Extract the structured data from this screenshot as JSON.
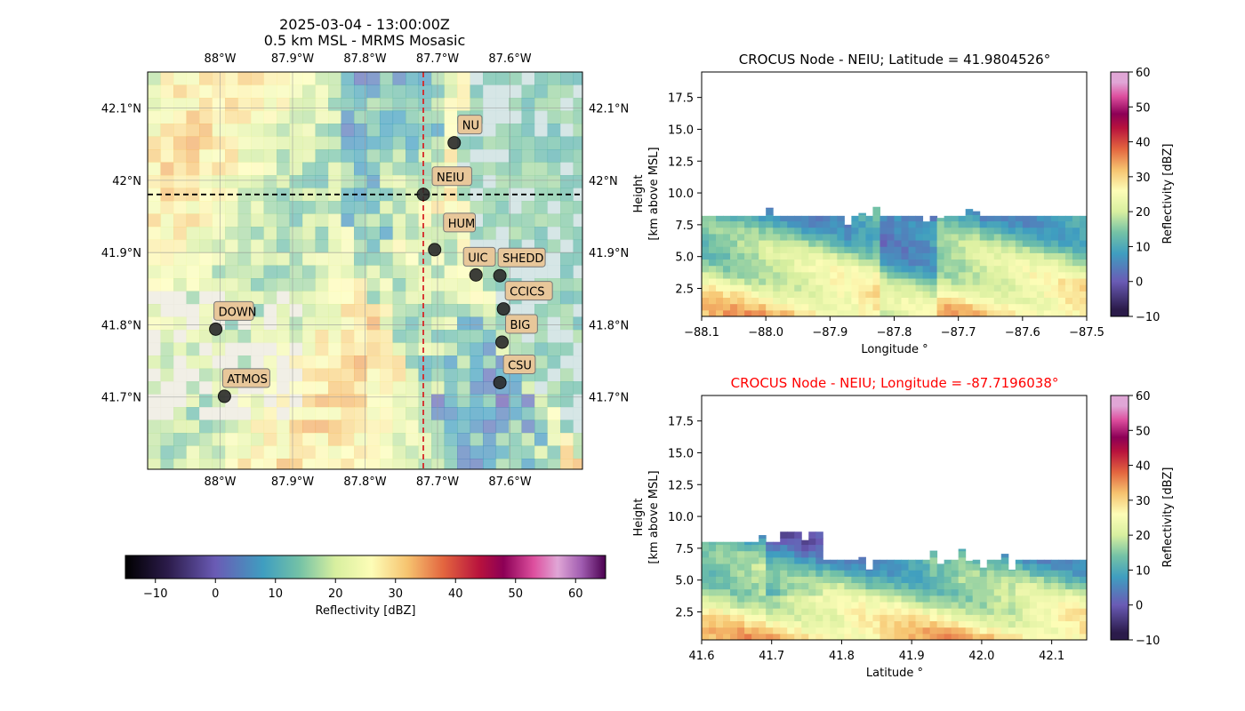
{
  "colors": {
    "neiu_line": "#d62728",
    "lat_line": "#000000",
    "station_fill": "#2b2b2b",
    "station_label_bg": "#e8c79a",
    "map_land": "#ece9dc",
    "map_water": "#c8dede",
    "title_red": "#ff0000"
  },
  "colorscale": {
    "name": "reflectivity",
    "stops": [
      {
        "v": -15,
        "c": "#000000"
      },
      {
        "v": -8,
        "c": "#2b1b4a"
      },
      {
        "v": 0,
        "c": "#6a5bb5"
      },
      {
        "v": 8,
        "c": "#3f9ec0"
      },
      {
        "v": 14,
        "c": "#74c2a6"
      },
      {
        "v": 20,
        "c": "#d8ef9f"
      },
      {
        "v": 26,
        "c": "#fdfdb7"
      },
      {
        "v": 32,
        "c": "#f6c36f"
      },
      {
        "v": 38,
        "c": "#e3653f"
      },
      {
        "v": 44,
        "c": "#b8123d"
      },
      {
        "v": 48,
        "c": "#8c0056"
      },
      {
        "v": 53,
        "c": "#dd4f9e"
      },
      {
        "v": 57,
        "c": "#e0a6d6"
      },
      {
        "v": 61,
        "c": "#a05cb0"
      },
      {
        "v": 65,
        "c": "#4b0050"
      }
    ]
  },
  "chart_data": [
    {
      "type": "heatmap",
      "id": "map",
      "title": "2025-03-04 - 13:00:00Z",
      "subtitle": "0.5 km MSL - MRMS Mosasic",
      "xlim": [
        -88.1,
        -87.5
      ],
      "ylim": [
        41.6,
        42.15
      ],
      "x_ticks": [
        -88.0,
        -87.9,
        -87.8,
        -87.7,
        -87.6
      ],
      "x_tick_labels": [
        "88°W",
        "87.9°W",
        "87.8°W",
        "87.7°W",
        "87.6°W"
      ],
      "y_ticks": [
        41.7,
        41.8,
        41.9,
        42.0,
        42.1
      ],
      "y_tick_labels": [
        "41.7°N",
        "41.8°N",
        "41.9°N",
        "42°N",
        "42.1°N"
      ],
      "crosshair": {
        "lon": -87.7196038,
        "lat": 41.9804526
      },
      "stations": [
        {
          "name": "NU",
          "lon": -87.677,
          "lat": 42.052,
          "dx": 8,
          "dy": -16
        },
        {
          "name": "NEIU",
          "lon": -87.7196,
          "lat": 41.9805,
          "dx": 14,
          "dy": -16
        },
        {
          "name": "HUM",
          "lon": -87.704,
          "lat": 41.904,
          "dx": 14,
          "dy": -26
        },
        {
          "name": "UIC",
          "lon": -87.647,
          "lat": 41.869,
          "dx": -10,
          "dy": -16
        },
        {
          "name": "SHEDD",
          "lon": -87.614,
          "lat": 41.868,
          "dx": 2,
          "dy": -16
        },
        {
          "name": "CCICS",
          "lon": -87.609,
          "lat": 41.822,
          "dx": 6,
          "dy": -16
        },
        {
          "name": "BIG",
          "lon": -87.611,
          "lat": 41.776,
          "dx": 8,
          "dy": -16
        },
        {
          "name": "CSU",
          "lon": -87.614,
          "lat": 41.72,
          "dx": 8,
          "dy": -16
        },
        {
          "name": "DOWN",
          "lon": -88.006,
          "lat": 41.794,
          "dx": 2,
          "dy": -16
        },
        {
          "name": "ATMOS",
          "lon": -87.994,
          "lat": 41.701,
          "dx": 2,
          "dy": -16
        }
      ]
    },
    {
      "type": "colorbar",
      "id": "map-colorbar",
      "orientation": "horizontal",
      "range": [
        -15,
        65
      ],
      "ticks": [
        -10,
        0,
        10,
        20,
        30,
        40,
        50,
        60
      ],
      "tick_labels": [
        "−10",
        "0",
        "10",
        "20",
        "30",
        "40",
        "50",
        "60"
      ],
      "label": "Reflectivity [dBZ]"
    },
    {
      "type": "heatmap",
      "id": "lat-section",
      "title": "CROCUS Node - NEIU; Latitude = 41.9804526°",
      "xlabel": "Longitude °",
      "ylabel_line1": "Height",
      "ylabel_line2": "[km above MSL]",
      "xlim": [
        -88.1,
        -87.5
      ],
      "ylim": [
        0.3,
        19.5
      ],
      "x_ticks": [
        -88.1,
        -88.0,
        -87.9,
        -87.8,
        -87.7,
        -87.6,
        -87.5
      ],
      "x_tick_labels": [
        "−88.1",
        "−88.0",
        "−87.9",
        "−87.8",
        "−87.7",
        "−87.6",
        "−87.5"
      ],
      "y_ticks": [
        2.5,
        5.0,
        7.5,
        10.0,
        12.5,
        15.0,
        17.5
      ],
      "y_tick_labels": [
        "2.5",
        "5.0",
        "7.5",
        "10.0",
        "12.5",
        "15.0",
        "17.5"
      ],
      "colorbar": {
        "range": [
          -10,
          60
        ],
        "ticks": [
          -10,
          0,
          10,
          20,
          30,
          40,
          50,
          60
        ],
        "tick_labels": [
          "−10",
          "0",
          "10",
          "20",
          "30",
          "40",
          "50",
          "60"
        ],
        "label": "Reflectivity [dBZ]"
      },
      "echo_top_km": 8.2
    },
    {
      "type": "heatmap",
      "id": "lon-section",
      "title": "CROCUS Node - NEIU; Longitude = -87.7196038°",
      "xlabel": "Latitude °",
      "ylabel_line1": "Height",
      "ylabel_line2": "[km above MSL]",
      "xlim": [
        41.6,
        42.15
      ],
      "ylim": [
        0.3,
        19.5
      ],
      "x_ticks": [
        41.6,
        41.7,
        41.8,
        41.9,
        42.0,
        42.1
      ],
      "x_tick_labels": [
        "41.6",
        "41.7",
        "41.8",
        "41.9",
        "42.0",
        "42.1"
      ],
      "y_ticks": [
        2.5,
        5.0,
        7.5,
        10.0,
        12.5,
        15.0,
        17.5
      ],
      "y_tick_labels": [
        "2.5",
        "5.0",
        "7.5",
        "10.0",
        "12.5",
        "15.0",
        "17.5"
      ],
      "colorbar": {
        "range": [
          -10,
          60
        ],
        "ticks": [
          -10,
          0,
          10,
          20,
          30,
          40,
          50,
          60
        ],
        "tick_labels": [
          "−10",
          "0",
          "10",
          "20",
          "30",
          "40",
          "50",
          "60"
        ],
        "label": "Reflectivity [dBZ]"
      },
      "echo_top_km": 8.0
    }
  ]
}
